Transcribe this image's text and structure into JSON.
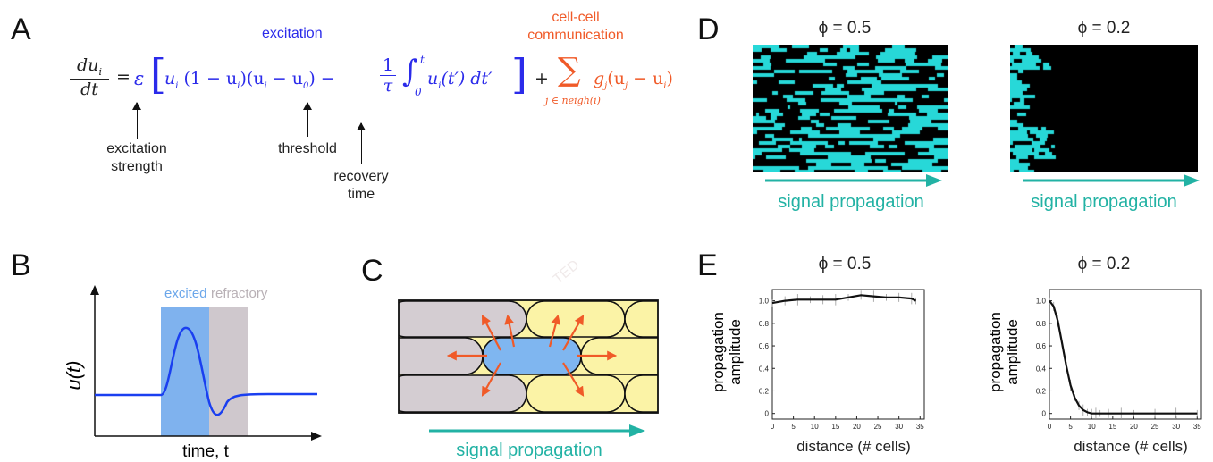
{
  "panelA": {
    "letter": "A",
    "excitation_label": "excitation",
    "comm_label_1": "cell-cell",
    "comm_label_2": "communication",
    "lhs_num": "du",
    "lhs_sub": "i",
    "lhs_den": "dt",
    "equals": "=",
    "epsilon": "ε",
    "term1": "u",
    "term_sub": "i",
    "one_minus": "(1 − u",
    "paren_close": ")(u",
    "minus_u": " − u",
    "u0_sub": "0",
    "close_minus": ") −",
    "frac_num": "1",
    "frac_den": "τ",
    "integral": "∫",
    "int_upper": "t",
    "int_lower": "0",
    "integrand": "u",
    "integrand_rest": "(t′) dt′",
    "plus": "+",
    "sum": "∑",
    "sum_sub": "j ∈ neigh(i)",
    "coupling": "g",
    "coupling_sub": "j",
    "coupling_rest_1": "(u",
    "coupling_rest_2": " − u",
    "coupling_rest_3": ")",
    "ann_excitation_1": "excitation",
    "ann_excitation_2": "strength",
    "ann_threshold": "threshold",
    "ann_recovery_1": "recovery",
    "ann_recovery_2": "time"
  },
  "panelB": {
    "letter": "B",
    "excited_label": "excited",
    "refractory_label": "refractory",
    "ylabel": "u(t)",
    "xlabel": "time, t",
    "colors": {
      "excited": "#7fb2ee",
      "refractory": "#cfc8cd",
      "trace": "#1a3ff0"
    }
  },
  "panelC": {
    "letter": "C",
    "propagation_label": "signal propagation",
    "colors": {
      "rest": "#fbf3a6",
      "refractory": "#d4cdd2",
      "excited": "#7fb6f0",
      "arrows": "#f05a28",
      "propagation": "#22b2a4"
    }
  },
  "panelD": {
    "letter": "D",
    "left_title": "ϕ = 0.5",
    "right_title": "ϕ = 0.2",
    "left_propagation": "signal propagation",
    "right_propagation": "signal propagation",
    "colors": {
      "signal": "#27d8d8",
      "background": "#000000"
    }
  },
  "panelE": {
    "letter": "E",
    "left_title": "ϕ = 0.5",
    "right_title": "ϕ = 0.2",
    "ylabel_1": "propagation",
    "ylabel_2": "amplitude",
    "left_xlabel": "distance (# cells)",
    "right_xlabel": "distance (# cells)"
  },
  "chart_data": [
    {
      "type": "line",
      "title": "ϕ = 0.5",
      "xlabel": "distance (# cells)",
      "ylabel": "propagation amplitude",
      "xticks": [
        "0",
        "5",
        "10",
        "15",
        "20",
        "25",
        "30",
        "35"
      ],
      "yticks": [
        "0",
        "0.2",
        "0.4",
        "0.6",
        "0.8",
        "1.0"
      ],
      "xlim": [
        0,
        36
      ],
      "ylim": [
        -0.05,
        1.1
      ],
      "x": [
        0,
        3,
        6,
        9,
        12,
        15,
        18,
        21,
        24,
        27,
        30,
        33,
        34
      ],
      "y": [
        0.98,
        1.0,
        1.01,
        1.01,
        1.01,
        1.01,
        1.03,
        1.05,
        1.04,
        1.03,
        1.03,
        1.02,
        1.0
      ]
    },
    {
      "type": "line",
      "title": "ϕ = 0.2",
      "xlabel": "distance (# cells)",
      "ylabel": "propagation amplitude",
      "xticks": [
        "0",
        "5",
        "10",
        "15",
        "20",
        "25",
        "30",
        "35"
      ],
      "yticks": [
        "0",
        "0.2",
        "0.4",
        "0.6",
        "0.8",
        "1.0"
      ],
      "xlim": [
        0,
        36
      ],
      "ylim": [
        -0.05,
        1.1
      ],
      "x": [
        0,
        1,
        2,
        3,
        4,
        5,
        6,
        7,
        8,
        9,
        10,
        11,
        12,
        14,
        17,
        20,
        25,
        30,
        35
      ],
      "y": [
        1.0,
        0.95,
        0.82,
        0.62,
        0.42,
        0.25,
        0.14,
        0.07,
        0.03,
        0.01,
        0.0,
        0.0,
        0.0,
        0.0,
        0.0,
        0.0,
        0.0,
        0.0,
        0.0
      ]
    }
  ]
}
